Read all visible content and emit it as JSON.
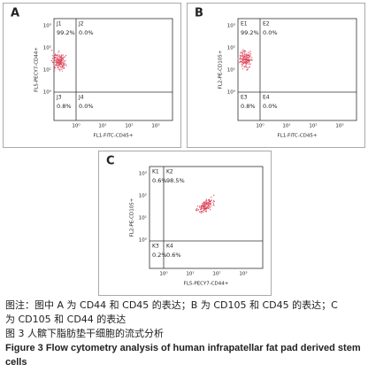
{
  "panels": [
    {
      "label": "A",
      "y_axis_label": "FL5-PECY7-CD44+",
      "x_axis_label": "FL1-FITC-CD45+",
      "yticks": [
        "10⁰",
        "10¹",
        "10²",
        "10³"
      ],
      "xticks": [
        "10⁰",
        "10¹",
        "10²",
        "10³"
      ],
      "quadrants": [
        {
          "name": "J1",
          "value": "99.2%"
        },
        {
          "name": "J2",
          "value": "0.0%"
        },
        {
          "name": "J3",
          "value": "0.8%"
        },
        {
          "name": "J4",
          "value": "0.0%"
        }
      ]
    },
    {
      "label": "B",
      "y_axis_label": "FL2-PE-CD105+",
      "x_axis_label": "FL1-FITC-CD45+",
      "yticks": [
        "10⁰",
        "10¹",
        "10²",
        "10³"
      ],
      "xticks": [
        "10⁰",
        "10¹",
        "10²",
        "10³"
      ],
      "quadrants": [
        {
          "name": "E1",
          "value": "99.2%"
        },
        {
          "name": "E2",
          "value": "0.0%"
        },
        {
          "name": "E3",
          "value": "0.8%"
        },
        {
          "name": "E4",
          "value": "0.0%"
        }
      ]
    },
    {
      "label": "C",
      "y_axis_label": "FL2-PE-CD105+",
      "x_axis_label": "FL5-PECY7-CD44+",
      "yticks": [
        "10⁰",
        "10¹",
        "10²",
        "10³"
      ],
      "xticks": [
        "10⁰",
        "10¹",
        "10²",
        "10³"
      ],
      "quadrants": [
        {
          "name": "K1",
          "value": "0.6%"
        },
        {
          "name": "K2",
          "value": "98.5%"
        },
        {
          "name": "K3",
          "value": "0.2%"
        },
        {
          "name": "K4",
          "value": "0.6%"
        }
      ]
    }
  ],
  "caption": {
    "note_lines": [
      "图注：图中 A 为 CD44 和 CD45 的表达；B 为 CD105 和 CD45 的表达；C",
      "为 CD105 和 CD44 的表达"
    ],
    "title_cn": "图 3  人髌下脂肪垫干细胞的流式分析",
    "title_en": "Figure 3  Flow cytometry analysis of human infrapatellar fat pad derived stem cells"
  }
}
